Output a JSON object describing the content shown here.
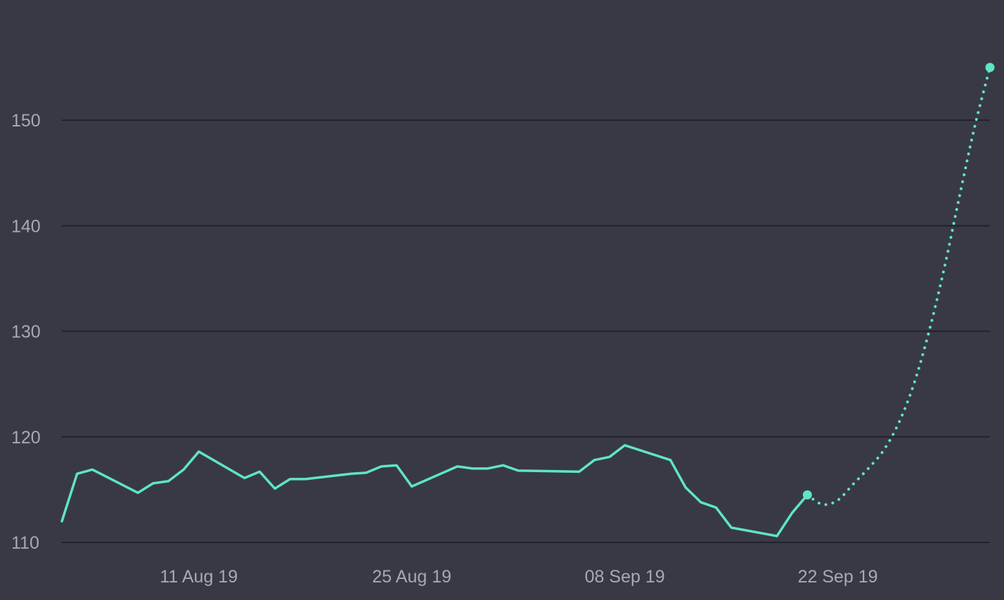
{
  "colors": {
    "background": "#393945",
    "gridline": "#22222b",
    "tick_text": "#a9a8b4",
    "series": "#5ee6c2"
  },
  "chart_data": {
    "type": "line",
    "title": "",
    "xlabel": "",
    "ylabel": "",
    "ylim": [
      110,
      155
    ],
    "xlim": [
      "2019-08-02",
      "2019-10-02"
    ],
    "y_ticks": [
      110,
      120,
      130,
      140,
      150
    ],
    "y_tick_labels": [
      "110",
      "120",
      "130",
      "140",
      "150"
    ],
    "x_ticks": [
      "2019-08-11",
      "2019-08-25",
      "2019-09-08",
      "2019-09-22"
    ],
    "x_tick_labels": [
      "11 Aug 19",
      "25 Aug 19",
      "08 Sep 19",
      "22 Sep 19"
    ],
    "grid": true,
    "legend": "none",
    "series": [
      {
        "style": "solid",
        "marker_at_end": true,
        "points": [
          {
            "x": "2019-08-02",
            "y": 112.0
          },
          {
            "x": "2019-08-03",
            "y": 116.5
          },
          {
            "x": "2019-08-04",
            "y": 116.9
          },
          {
            "x": "2019-08-07",
            "y": 114.7
          },
          {
            "x": "2019-08-08",
            "y": 115.6
          },
          {
            "x": "2019-08-09",
            "y": 115.8
          },
          {
            "x": "2019-08-10",
            "y": 116.9
          },
          {
            "x": "2019-08-11",
            "y": 118.6
          },
          {
            "x": "2019-08-14",
            "y": 116.1
          },
          {
            "x": "2019-08-15",
            "y": 116.7
          },
          {
            "x": "2019-08-16",
            "y": 115.1
          },
          {
            "x": "2019-08-17",
            "y": 116.0
          },
          {
            "x": "2019-08-18",
            "y": 116.0
          },
          {
            "x": "2019-08-21",
            "y": 116.5
          },
          {
            "x": "2019-08-22",
            "y": 116.6
          },
          {
            "x": "2019-08-23",
            "y": 117.2
          },
          {
            "x": "2019-08-24",
            "y": 117.3
          },
          {
            "x": "2019-08-25",
            "y": 115.3
          },
          {
            "x": "2019-08-28",
            "y": 117.2
          },
          {
            "x": "2019-08-29",
            "y": 117.0
          },
          {
            "x": "2019-08-30",
            "y": 117.0
          },
          {
            "x": "2019-08-31",
            "y": 117.3
          },
          {
            "x": "2019-09-01",
            "y": 116.8
          },
          {
            "x": "2019-09-05",
            "y": 116.7
          },
          {
            "x": "2019-09-06",
            "y": 117.8
          },
          {
            "x": "2019-09-07",
            "y": 118.1
          },
          {
            "x": "2019-09-08",
            "y": 119.2
          },
          {
            "x": "2019-09-11",
            "y": 117.8
          },
          {
            "x": "2019-09-12",
            "y": 115.2
          },
          {
            "x": "2019-09-13",
            "y": 113.8
          },
          {
            "x": "2019-09-14",
            "y": 113.3
          },
          {
            "x": "2019-09-15",
            "y": 111.4
          },
          {
            "x": "2019-09-18",
            "y": 110.6
          },
          {
            "x": "2019-09-19",
            "y": 112.8
          },
          {
            "x": "2019-09-20",
            "y": 114.5
          }
        ]
      },
      {
        "style": "dotted",
        "marker_at_end": true,
        "points": [
          {
            "x": "2019-09-20",
            "y": 114.5
          },
          {
            "x": "2019-09-21",
            "y": 113.6
          },
          {
            "x": "2019-09-22",
            "y": 114.0
          },
          {
            "x": "2019-09-23",
            "y": 115.5
          },
          {
            "x": "2019-09-24",
            "y": 117.0
          },
          {
            "x": "2019-09-25",
            "y": 118.7
          },
          {
            "x": "2019-09-26",
            "y": 121.3
          },
          {
            "x": "2019-09-27",
            "y": 125.0
          },
          {
            "x": "2019-09-28",
            "y": 130.0
          },
          {
            "x": "2019-09-29",
            "y": 136.0
          },
          {
            "x": "2019-09-30",
            "y": 142.8
          },
          {
            "x": "2019-10-01",
            "y": 149.4
          },
          {
            "x": "2019-10-02",
            "y": 155.0
          }
        ]
      }
    ]
  }
}
